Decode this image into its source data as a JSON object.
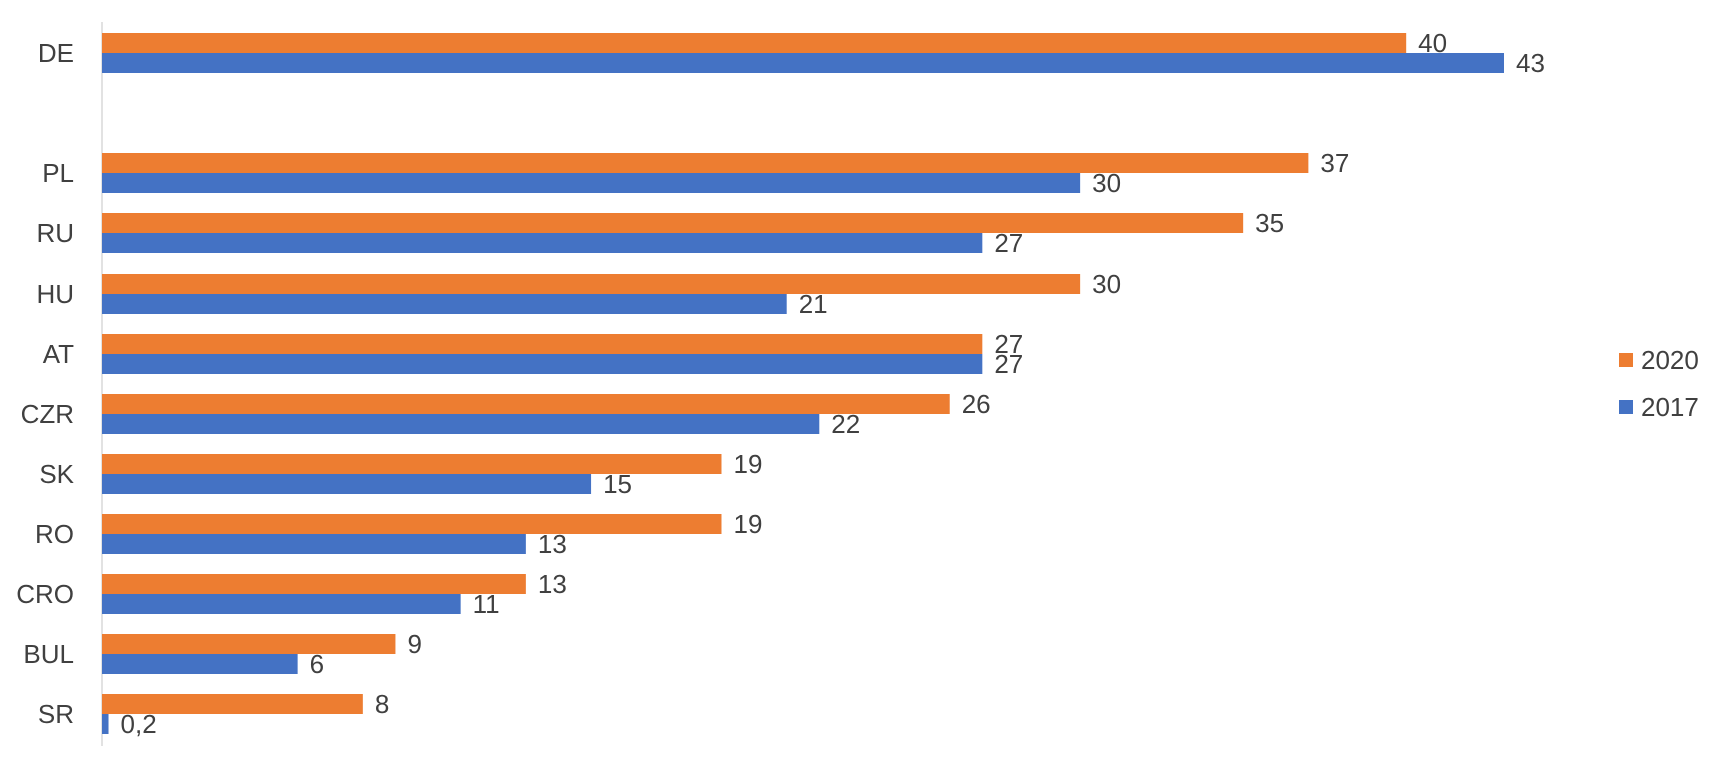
{
  "chart_data": {
    "type": "bar",
    "orientation": "horizontal",
    "categories": [
      "DE",
      "PL",
      "RU",
      "HU",
      "AT",
      "CZR",
      "SK",
      "RO",
      "CRO",
      "BUL",
      "SR"
    ],
    "series": [
      {
        "name": "2020",
        "color": "#ED7D31",
        "values": [
          40,
          37,
          35,
          30,
          27,
          26,
          19,
          19,
          13,
          9,
          8
        ],
        "labels": [
          "40",
          "37",
          "35",
          "30",
          "27",
          "26",
          "19",
          "19",
          "13",
          "9",
          "8"
        ]
      },
      {
        "name": "2017",
        "color": "#4472C4",
        "values": [
          43,
          30,
          27,
          21,
          27,
          22,
          15,
          13,
          11,
          6,
          0.2
        ],
        "labels": [
          "43",
          "30",
          "27",
          "21",
          "27",
          "22",
          "15",
          "13",
          "11",
          "6",
          "0,2"
        ]
      }
    ],
    "xlim": [
      0,
      43
    ],
    "grid": false,
    "legend_position": "right",
    "title": "",
    "xlabel": "",
    "ylabel": ""
  }
}
